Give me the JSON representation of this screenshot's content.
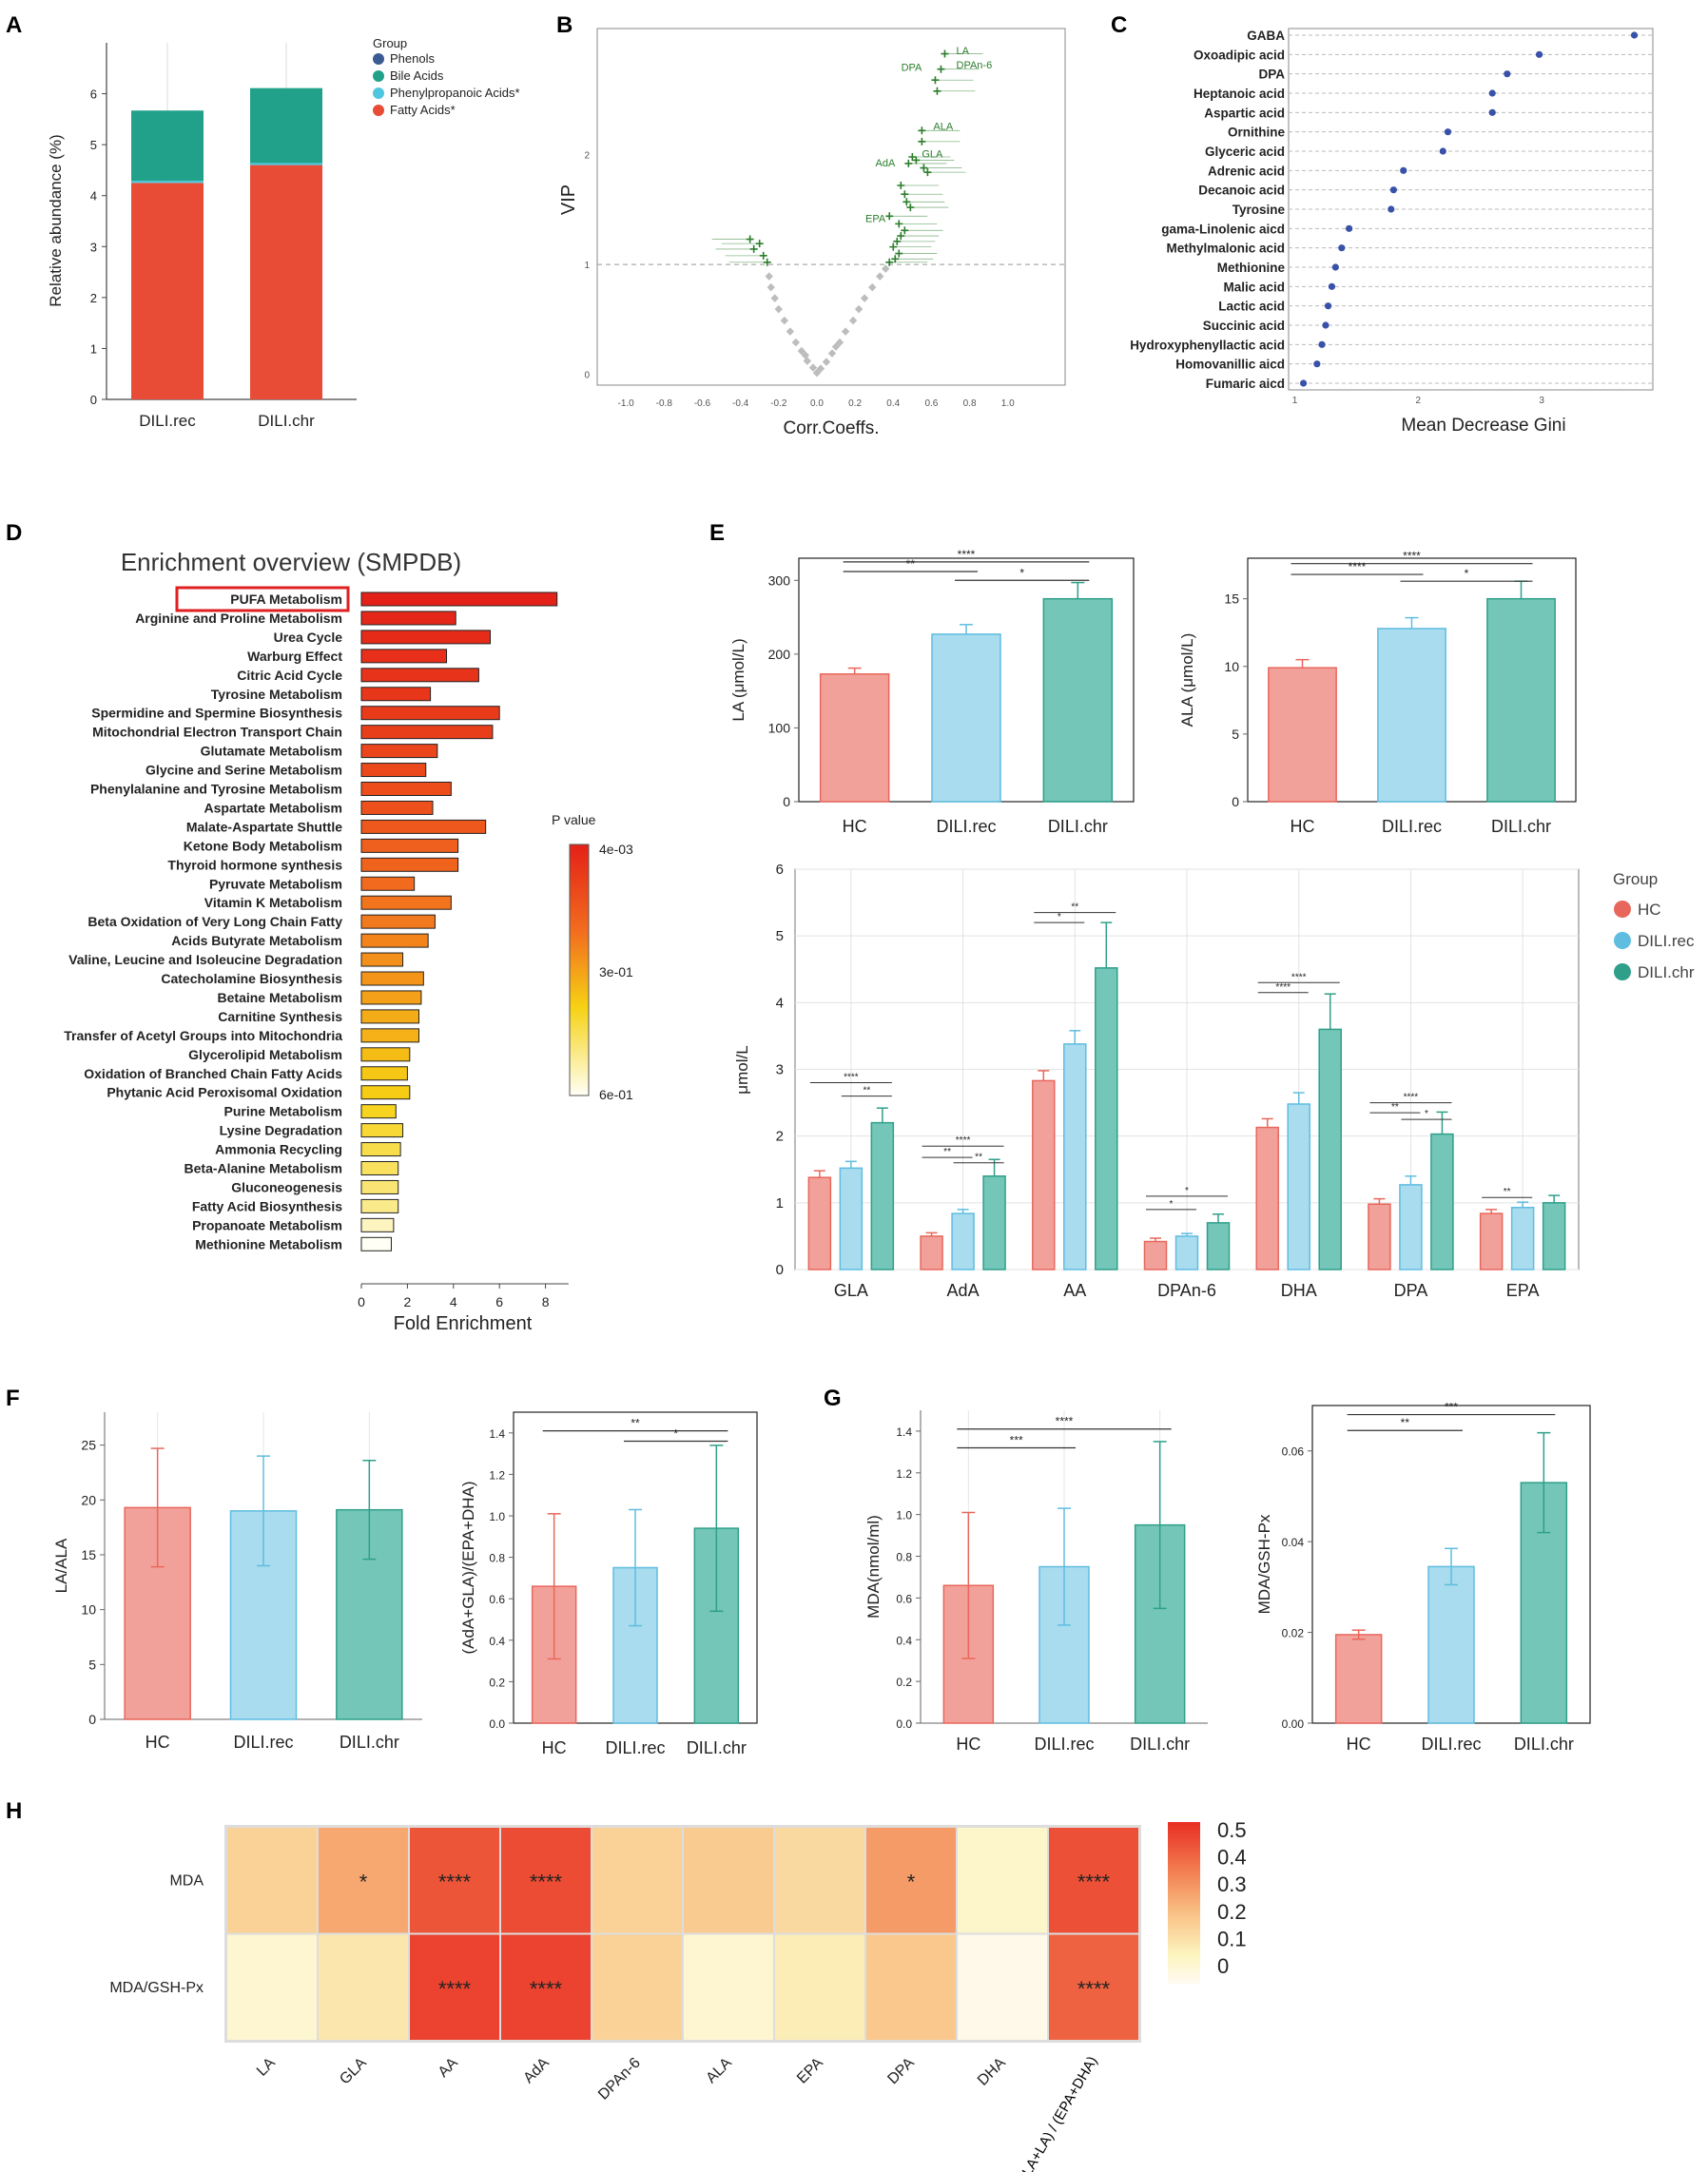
{
  "colors": {
    "hc": "#f2a19a",
    "hc_stroke": "#e8675c",
    "rec": "#a9dcee",
    "rec_stroke": "#5fbde0",
    "chr": "#74c7b8",
    "chr_stroke": "#2f9f8a",
    "fatty": "#e84c36",
    "bile": "#21a18a",
    "phenylprop": "#4ec6df",
    "phenols": "#3b5a93",
    "vip_green": "#2b7d2b",
    "vip_gray": "#bdbdbd",
    "gini_dot": "#3951a8"
  },
  "panel_labels": {
    "A": "A",
    "B": "B",
    "C": "C",
    "D": "D",
    "E": "E",
    "F": "F",
    "G": "G",
    "H": "H"
  },
  "chart_data": [
    {
      "id": "A",
      "type": "bar",
      "stacked": true,
      "categories": [
        "DILI.rec",
        "DILI.chr"
      ],
      "ylabel": "Relative abundance (%)",
      "ylim": [
        0,
        7
      ],
      "yticks": [
        "0",
        "1",
        "2",
        "3",
        "4",
        "5",
        "6"
      ],
      "legend_title": "Group",
      "series": [
        {
          "name": "Fatty Acids",
          "label": "Fatty Acids*",
          "values": [
            4.25,
            4.6
          ]
        },
        {
          "name": "Phenylpropanoic Acids",
          "label": "Phenylpropanoic Acids*",
          "values": [
            0.04,
            0.04
          ]
        },
        {
          "name": "Bile Acids",
          "label": "Bile Acids",
          "values": [
            1.38,
            1.47
          ]
        },
        {
          "name": "Phenols",
          "label": "Phenols",
          "values": [
            0,
            0
          ]
        }
      ]
    },
    {
      "id": "B",
      "type": "scatter",
      "xlabel": "Corr.Coeffs.",
      "ylabel": "VIP",
      "xlim": [
        -1.15,
        1.3
      ],
      "ylim": [
        -0.1,
        3.15
      ],
      "xticks": [
        "-1.0",
        "-0.8",
        "-0.6",
        "-0.4",
        "-0.2",
        "0.0",
        "0.2",
        "0.4",
        "0.6",
        "0.8",
        "1.0"
      ],
      "yticks": [
        "0",
        "1",
        "2"
      ],
      "threshold_vip": 1,
      "labels": [
        {
          "text": "LA",
          "x": 0.7,
          "y": 2.95
        },
        {
          "text": "DPA",
          "x": 0.58,
          "y": 2.8
        },
        {
          "text": "DPAn-6",
          "x": 0.7,
          "y": 2.82
        },
        {
          "text": "ALA",
          "x": 0.58,
          "y": 2.26
        },
        {
          "text": "GLA",
          "x": 0.52,
          "y": 2.01
        },
        {
          "text": "AdA",
          "x": 0.44,
          "y": 1.93
        },
        {
          "text": "EPA",
          "x": 0.39,
          "y": 1.42
        }
      ],
      "points_sig": [
        {
          "x": 0.67,
          "y": 2.92
        },
        {
          "x": 0.65,
          "y": 2.78
        },
        {
          "x": 0.62,
          "y": 2.68
        },
        {
          "x": 0.63,
          "y": 2.58
        },
        {
          "x": 0.55,
          "y": 2.22
        },
        {
          "x": 0.55,
          "y": 2.12
        },
        {
          "x": 0.5,
          "y": 1.98
        },
        {
          "x": 0.52,
          "y": 1.95
        },
        {
          "x": 0.48,
          "y": 1.92
        },
        {
          "x": 0.56,
          "y": 1.88
        },
        {
          "x": 0.58,
          "y": 1.84
        },
        {
          "x": 0.44,
          "y": 1.72
        },
        {
          "x": 0.46,
          "y": 1.64
        },
        {
          "x": 0.47,
          "y": 1.57
        },
        {
          "x": 0.49,
          "y": 1.52
        },
        {
          "x": 0.38,
          "y": 1.44
        },
        {
          "x": 0.43,
          "y": 1.37
        },
        {
          "x": 0.46,
          "y": 1.31
        },
        {
          "x": 0.44,
          "y": 1.26
        },
        {
          "x": 0.42,
          "y": 1.21
        },
        {
          "x": 0.4,
          "y": 1.16
        },
        {
          "x": 0.43,
          "y": 1.1
        },
        {
          "x": 0.41,
          "y": 1.05
        },
        {
          "x": 0.38,
          "y": 1.02
        },
        {
          "x": -0.35,
          "y": 1.23
        },
        {
          "x": -0.3,
          "y": 1.19
        },
        {
          "x": -0.33,
          "y": 1.14
        },
        {
          "x": -0.28,
          "y": 1.08
        },
        {
          "x": -0.26,
          "y": 1.02
        }
      ],
      "points_ns": [
        {
          "x": 0.0,
          "y": 0.02
        },
        {
          "x": 0.02,
          "y": 0.06
        },
        {
          "x": -0.02,
          "y": 0.07
        },
        {
          "x": 0.05,
          "y": 0.12
        },
        {
          "x": -0.05,
          "y": 0.13
        },
        {
          "x": 0.08,
          "y": 0.2
        },
        {
          "x": -0.08,
          "y": 0.22
        },
        {
          "x": 0.12,
          "y": 0.3
        },
        {
          "x": -0.11,
          "y": 0.3
        },
        {
          "x": 0.15,
          "y": 0.4
        },
        {
          "x": -0.14,
          "y": 0.4
        },
        {
          "x": 0.19,
          "y": 0.5
        },
        {
          "x": -0.17,
          "y": 0.5
        },
        {
          "x": 0.22,
          "y": 0.6
        },
        {
          "x": -0.2,
          "y": 0.6
        },
        {
          "x": 0.25,
          "y": 0.7
        },
        {
          "x": -0.22,
          "y": 0.7
        },
        {
          "x": 0.29,
          "y": 0.8
        },
        {
          "x": -0.24,
          "y": 0.8
        },
        {
          "x": 0.33,
          "y": 0.9
        },
        {
          "x": -0.25,
          "y": 0.9
        },
        {
          "x": 0.36,
          "y": 0.97
        },
        {
          "x": 0.1,
          "y": 0.26
        },
        {
          "x": -0.06,
          "y": 0.18
        }
      ]
    },
    {
      "id": "C",
      "type": "scatter",
      "subtype": "dot-plot",
      "xlabel": "Mean Decrease Gini",
      "xlim": [
        0.95,
        3.9
      ],
      "xticks": [
        "1",
        "2",
        "3"
      ],
      "categories": [
        "GABA",
        "Oxoadipic acid",
        "DPA",
        "Heptanoic acid",
        "Aspartic acid",
        "Ornithine",
        "Glyceric acid",
        "Adrenic acid",
        "Decanoic acid",
        "Tyrosine",
        "gama-Linolenic aicd",
        "Methylmalonic acid",
        "Methionine",
        "Malic acid",
        "Lactic acid",
        "Succinic acid",
        "Hydroxyphenyllactic acid",
        "Homovanillic aicd",
        "Fumaric aicd"
      ],
      "values": [
        3.75,
        2.98,
        2.72,
        2.6,
        2.6,
        2.24,
        2.2,
        1.88,
        1.8,
        1.78,
        1.44,
        1.38,
        1.33,
        1.3,
        1.27,
        1.25,
        1.22,
        1.18,
        1.07
      ]
    },
    {
      "id": "D",
      "type": "bar",
      "orientation": "horizontal",
      "title": "Enrichment overview (SMPDB)",
      "xlabel": "Fold Enrichment",
      "xlim": [
        0,
        9
      ],
      "xticks": [
        "0",
        "2",
        "4",
        "6",
        "8"
      ],
      "highlight": "PUFA Metabolism",
      "colorbar": {
        "title": "P value",
        "ticks": [
          "4e-03",
          "3e-01",
          "6e-01"
        ]
      },
      "categories": [
        "PUFA Metabolism",
        "Arginine and Proline Metabolism",
        "Urea Cycle",
        "Warburg Effect",
        "Citric Acid Cycle",
        "Tyrosine Metabolism",
        "Spermidine and Spermine Biosynthesis",
        "Mitochondrial Electron Transport Chain",
        "Glutamate Metabolism",
        "Glycine and Serine Metabolism",
        "Phenylalanine and Tyrosine Metabolism",
        "Aspartate Metabolism",
        "Malate-Aspartate Shuttle",
        "Ketone Body Metabolism",
        "Thyroid hormone synthesis",
        "Pyruvate Metabolism",
        "Vitamin K Metabolism",
        "Beta Oxidation of Very Long Chain Fatty",
        "Acids Butyrate Metabolism",
        "Valine, Leucine and Isoleucine Degradation",
        "Catecholamine Biosynthesis",
        "Betaine Metabolism",
        "Carnitine Synthesis",
        "Transfer of Acetyl Groups into Mitochondria",
        "Glycerolipid Metabolism",
        "Oxidation of Branched Chain Fatty Acids",
        "Phytanic Acid Peroxisomal Oxidation",
        "Purine Metabolism",
        "Lysine Degradation",
        "Ammonia Recycling",
        "Beta-Alanine Metabolism",
        "Gluconeogenesis",
        "Fatty Acid Biosynthesis",
        "Propanoate Metabolism",
        "Methionine Metabolism"
      ],
      "values": [
        8.5,
        4.1,
        5.6,
        3.7,
        5.1,
        3.0,
        6.0,
        5.7,
        3.3,
        2.8,
        3.9,
        3.1,
        5.4,
        4.2,
        4.2,
        2.3,
        3.9,
        3.2,
        2.9,
        1.8,
        2.7,
        2.6,
        2.5,
        2.5,
        2.1,
        2.0,
        2.1,
        1.5,
        1.8,
        1.7,
        1.6,
        1.6,
        1.6,
        1.4,
        1.3
      ],
      "pvalues": [
        0.004,
        0.02,
        0.03,
        0.04,
        0.05,
        0.06,
        0.07,
        0.08,
        0.1,
        0.11,
        0.12,
        0.13,
        0.15,
        0.17,
        0.18,
        0.2,
        0.22,
        0.23,
        0.25,
        0.27,
        0.28,
        0.3,
        0.32,
        0.33,
        0.35,
        0.37,
        0.38,
        0.4,
        0.42,
        0.44,
        0.46,
        0.48,
        0.5,
        0.55,
        0.6
      ]
    },
    {
      "id": "E1",
      "type": "bar",
      "categories": [
        "HC",
        "DILI.rec",
        "DILI.chr"
      ],
      "ylabel": "LA (μmol/L)",
      "ylim": [
        0,
        330
      ],
      "yticks": [
        "0",
        "100",
        "200",
        "300"
      ],
      "values": [
        173,
        227,
        275
      ],
      "errors": [
        8,
        13,
        22
      ],
      "sig": [
        {
          "from": 0,
          "to": 1,
          "label": "**",
          "y": 312
        },
        {
          "from": 1,
          "to": 2,
          "label": "*",
          "y": 300
        },
        {
          "from": 0,
          "to": 2,
          "label": "****",
          "y": 325
        }
      ]
    },
    {
      "id": "E2",
      "type": "bar",
      "categories": [
        "HC",
        "DILI.rec",
        "DILI.chr"
      ],
      "ylabel": "ALA (μmol/L)",
      "ylim": [
        0,
        18
      ],
      "yticks": [
        "0",
        "5",
        "10",
        "15"
      ],
      "values": [
        9.9,
        12.8,
        15.0
      ],
      "errors": [
        0.6,
        0.8,
        1.3
      ],
      "sig": [
        {
          "from": 0,
          "to": 1,
          "label": "****",
          "y": 16.8
        },
        {
          "from": 1,
          "to": 2,
          "label": "*",
          "y": 16.3
        },
        {
          "from": 0,
          "to": 2,
          "label": "****",
          "y": 17.6
        }
      ]
    },
    {
      "id": "E3",
      "type": "bar",
      "categories": [
        "GLA",
        "AdA",
        "AA",
        "DPAn-6",
        "DHA",
        "DPA",
        "EPA"
      ],
      "ylabel": "μmol/L",
      "ylim": [
        0,
        6
      ],
      "yticks": [
        "0",
        "1",
        "2",
        "3",
        "4",
        "5",
        "6"
      ],
      "legend_title": "Group",
      "series": [
        {
          "name": "HC",
          "values": [
            1.38,
            0.5,
            2.83,
            0.42,
            2.13,
            0.98,
            0.84
          ],
          "errors": [
            0.1,
            0.05,
            0.15,
            0.05,
            0.13,
            0.08,
            0.06
          ]
        },
        {
          "name": "DILI.rec",
          "values": [
            1.52,
            0.84,
            3.38,
            0.5,
            2.48,
            1.27,
            0.93
          ],
          "errors": [
            0.1,
            0.06,
            0.2,
            0.04,
            0.17,
            0.13,
            0.08
          ]
        },
        {
          "name": "DILI.chr",
          "values": [
            2.2,
            1.4,
            4.52,
            0.7,
            3.6,
            2.03,
            1.0
          ],
          "errors": [
            0.22,
            0.25,
            0.68,
            0.13,
            0.53,
            0.33,
            0.11
          ]
        }
      ],
      "sig": [
        {
          "cat": 0,
          "from": 0,
          "to": 2,
          "label": "****",
          "y": 2.8
        },
        {
          "cat": 0,
          "from": 1,
          "to": 2,
          "label": "**",
          "y": 2.6
        },
        {
          "cat": 1,
          "from": 0,
          "to": 2,
          "label": "****",
          "y": 1.85
        },
        {
          "cat": 1,
          "from": 0,
          "to": 1,
          "label": "**",
          "y": 1.68
        },
        {
          "cat": 1,
          "from": 1,
          "to": 2,
          "label": "**",
          "y": 1.6
        },
        {
          "cat": 2,
          "from": 0,
          "to": 2,
          "label": "**",
          "y": 5.35
        },
        {
          "cat": 2,
          "from": 0,
          "to": 1,
          "label": "*",
          "y": 5.2
        },
        {
          "cat": 3,
          "from": 0,
          "to": 2,
          "label": "*",
          "y": 1.1
        },
        {
          "cat": 3,
          "from": 0,
          "to": 1,
          "label": "*",
          "y": 0.9
        },
        {
          "cat": 4,
          "from": 0,
          "to": 2,
          "label": "****",
          "y": 4.3
        },
        {
          "cat": 4,
          "from": 0,
          "to": 1,
          "label": "****",
          "y": 4.15
        },
        {
          "cat": 5,
          "from": 0,
          "to": 2,
          "label": "****",
          "y": 2.5
        },
        {
          "cat": 5,
          "from": 0,
          "to": 1,
          "label": "**",
          "y": 2.35
        },
        {
          "cat": 5,
          "from": 1,
          "to": 2,
          "label": "*",
          "y": 2.25
        },
        {
          "cat": 6,
          "from": 0,
          "to": 1,
          "label": "**",
          "y": 1.08
        }
      ]
    },
    {
      "id": "F1",
      "type": "bar",
      "categories": [
        "HC",
        "DILI.rec",
        "DILI.chr"
      ],
      "ylabel": "LA/ALA",
      "ylim": [
        0,
        28
      ],
      "yticks": [
        "0",
        "5",
        "10",
        "15",
        "20",
        "25"
      ],
      "values": [
        19.3,
        19.0,
        19.1
      ],
      "errors": [
        5.4,
        5.0,
        4.5
      ],
      "sig": []
    },
    {
      "id": "F2",
      "type": "bar",
      "categories": [
        "HC",
        "DILI.rec",
        "DILI.chr"
      ],
      "ylabel": "(AdA+GLA)/(EPA+DHA)",
      "ylim": [
        0,
        1.5
      ],
      "yticks": [
        "0.0",
        "0.2",
        "0.4",
        "0.6",
        "0.8",
        "1.0",
        "1.2",
        "1.4"
      ],
      "values": [
        0.66,
        0.75,
        0.94
      ],
      "errors": [
        0.35,
        0.28,
        0.4
      ],
      "sig": [
        {
          "from": 0,
          "to": 2,
          "label": "**",
          "y": 1.41
        },
        {
          "from": 1,
          "to": 2,
          "label": "*",
          "y": 1.36
        }
      ]
    },
    {
      "id": "G1",
      "type": "bar",
      "categories": [
        "HC",
        "DILI.rec",
        "DILI.chr"
      ],
      "ylabel": "MDA(nmol/ml)",
      "ylim": [
        0,
        1.5
      ],
      "yticks": [
        "0.0",
        "0.2",
        "0.4",
        "0.6",
        "0.8",
        "1.0",
        "1.2",
        "1.4"
      ],
      "values": [
        0.66,
        0.75,
        0.95
      ],
      "errors": [
        0.35,
        0.28,
        0.4
      ],
      "sig": [
        {
          "from": 0,
          "to": 1,
          "label": "***",
          "y": 1.32
        },
        {
          "from": 0,
          "to": 2,
          "label": "****",
          "y": 1.41
        }
      ]
    },
    {
      "id": "G2",
      "type": "bar",
      "categories": [
        "HC",
        "DILI.rec",
        "DILI.chr"
      ],
      "ylabel": "MDA/GSH-Px",
      "ylim": [
        0,
        0.07
      ],
      "yticks": [
        "0.00",
        "0.02",
        "0.04",
        "0.06"
      ],
      "values": [
        0.0195,
        0.0345,
        0.053
      ],
      "errors": [
        0.001,
        0.004,
        0.011
      ],
      "sig": [
        {
          "from": 0,
          "to": 1,
          "label": "**",
          "y": 0.0645
        },
        {
          "from": 0,
          "to": 2,
          "label": "***",
          "y": 0.068
        }
      ]
    },
    {
      "id": "H",
      "type": "heatmap",
      "rows": [
        "MDA",
        "MDA/GSH-Px"
      ],
      "columns": [
        "LA",
        "GLA",
        "AA",
        "AdA",
        "DPAn-6",
        "ALA",
        "EPA",
        "DPA",
        "DHA",
        "(AdA+GLA+LA) / (EPA+DHA)"
      ],
      "values": [
        [
          0.16,
          0.27,
          0.46,
          0.48,
          0.16,
          0.18,
          0.14,
          0.3,
          0.03,
          0.47
        ],
        [
          0.02,
          0.1,
          0.5,
          0.5,
          0.16,
          0.02,
          0.08,
          0.19,
          -0.03,
          0.43
        ]
      ],
      "annotations": [
        [
          "",
          "*",
          "****",
          "****",
          "",
          "",
          "",
          "*",
          "",
          "****"
        ],
        [
          "",
          "",
          "****",
          "****",
          "",
          "",
          "",
          "",
          "",
          "****"
        ]
      ],
      "colorbar": {
        "range": [
          -0.05,
          0.55
        ],
        "ticks": [
          "0.5",
          "0.4",
          "0.3",
          "0.2",
          "0.1",
          "0"
        ]
      }
    }
  ]
}
